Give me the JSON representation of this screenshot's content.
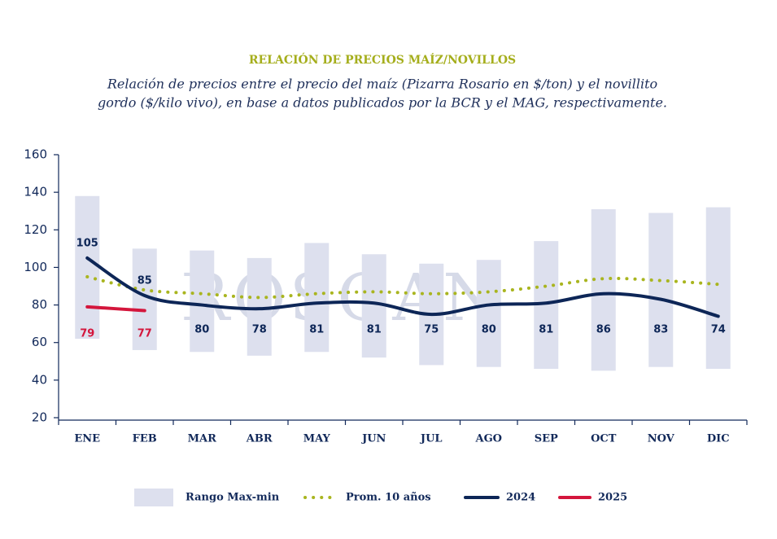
{
  "chart_data": {
    "type": "line",
    "title": "RELACIÓN DE PRECIOS MAÍZ/NOVILLOS",
    "subtitle": [
      "Relación de precios entre el precio del maíz (Pizarra Rosario en $/ton) y el novillito",
      "gordo ($/kilo vivo), en base a datos publicados por la BCR y el MAG, respectivamente."
    ],
    "watermark": "ROSGAN",
    "categories": [
      "ENE",
      "FEB",
      "MAR",
      "ABR",
      "MAY",
      "JUN",
      "JUL",
      "AGO",
      "SEP",
      "OCT",
      "NOV",
      "DIC"
    ],
    "ylim": [
      20,
      160
    ],
    "yticks": [
      20,
      40,
      60,
      80,
      100,
      120,
      140,
      160
    ],
    "range": {
      "name": "Rango Max-min",
      "color": "#dde0ee",
      "high": [
        138,
        110,
        109,
        105,
        113,
        107,
        102,
        104,
        114,
        131,
        129,
        132
      ],
      "low": [
        62,
        56,
        55,
        53,
        55,
        52,
        48,
        47,
        46,
        45,
        47,
        46
      ]
    },
    "series": [
      {
        "name": "Prom. 10 años",
        "color": "#a9b51f",
        "style": "dotted",
        "values": [
          95,
          88,
          86,
          84,
          86,
          87,
          86,
          87,
          90,
          94,
          93,
          91
        ]
      },
      {
        "name": "2024",
        "color": "#0d2657",
        "style": "solid",
        "labels": true,
        "values": [
          105,
          85,
          80,
          78,
          81,
          81,
          75,
          80,
          81,
          86,
          83,
          74
        ]
      },
      {
        "name": "2025",
        "color": "#d4163c",
        "style": "solid",
        "labels": true,
        "values": [
          79,
          77,
          null,
          null,
          null,
          null,
          null,
          null,
          null,
          null,
          null,
          null
        ]
      }
    ]
  }
}
